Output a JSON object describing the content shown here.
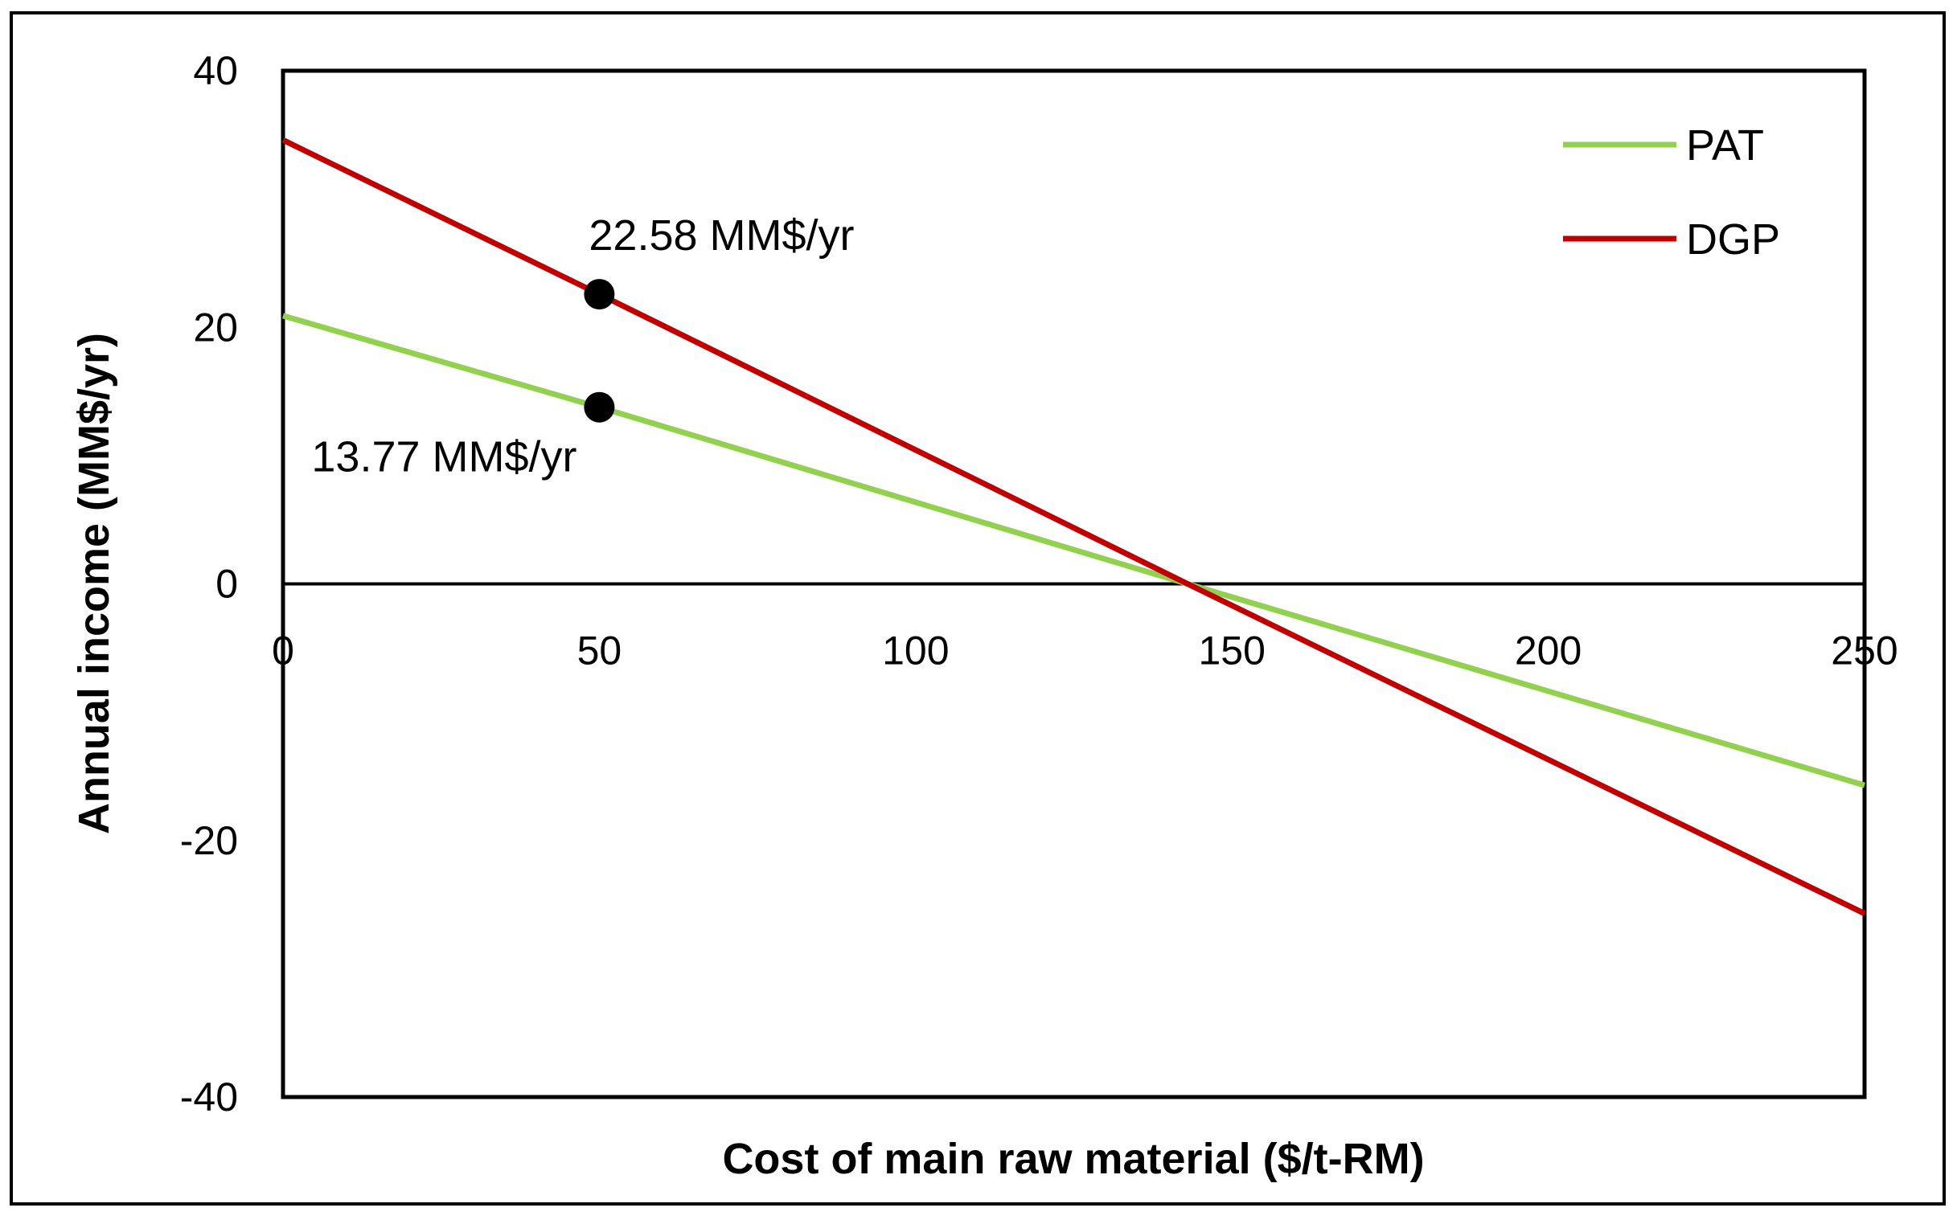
{
  "chart_data": {
    "type": "line",
    "title": "",
    "xlabel": "Cost of main raw material ($/t-RM)",
    "ylabel": "Annual income (MM$/yr)",
    "xlim": [
      0,
      250
    ],
    "ylim": [
      -40,
      40
    ],
    "xticks": [
      0,
      50,
      100,
      150,
      200,
      250
    ],
    "yticks": [
      -40,
      -20,
      0,
      20,
      40
    ],
    "grid": false,
    "legend_position": "top-right",
    "series": [
      {
        "name": "PAT",
        "color": "#92d050",
        "x": [
          0,
          50,
          143,
          250
        ],
        "y": [
          20.9,
          13.77,
          0,
          -15.7
        ]
      },
      {
        "name": "DGP",
        "color": "#c00000",
        "x": [
          0,
          50,
          143,
          250
        ],
        "y": [
          34.6,
          22.58,
          0,
          -25.7
        ]
      }
    ],
    "annotations": [
      {
        "x": 50,
        "y": 22.58,
        "text": "22.58 MM$/yr",
        "placement": "above"
      },
      {
        "x": 50,
        "y": 13.77,
        "text": "13.77 MM$/yr",
        "placement": "below-left"
      }
    ],
    "zero_line_color": "#000000"
  }
}
